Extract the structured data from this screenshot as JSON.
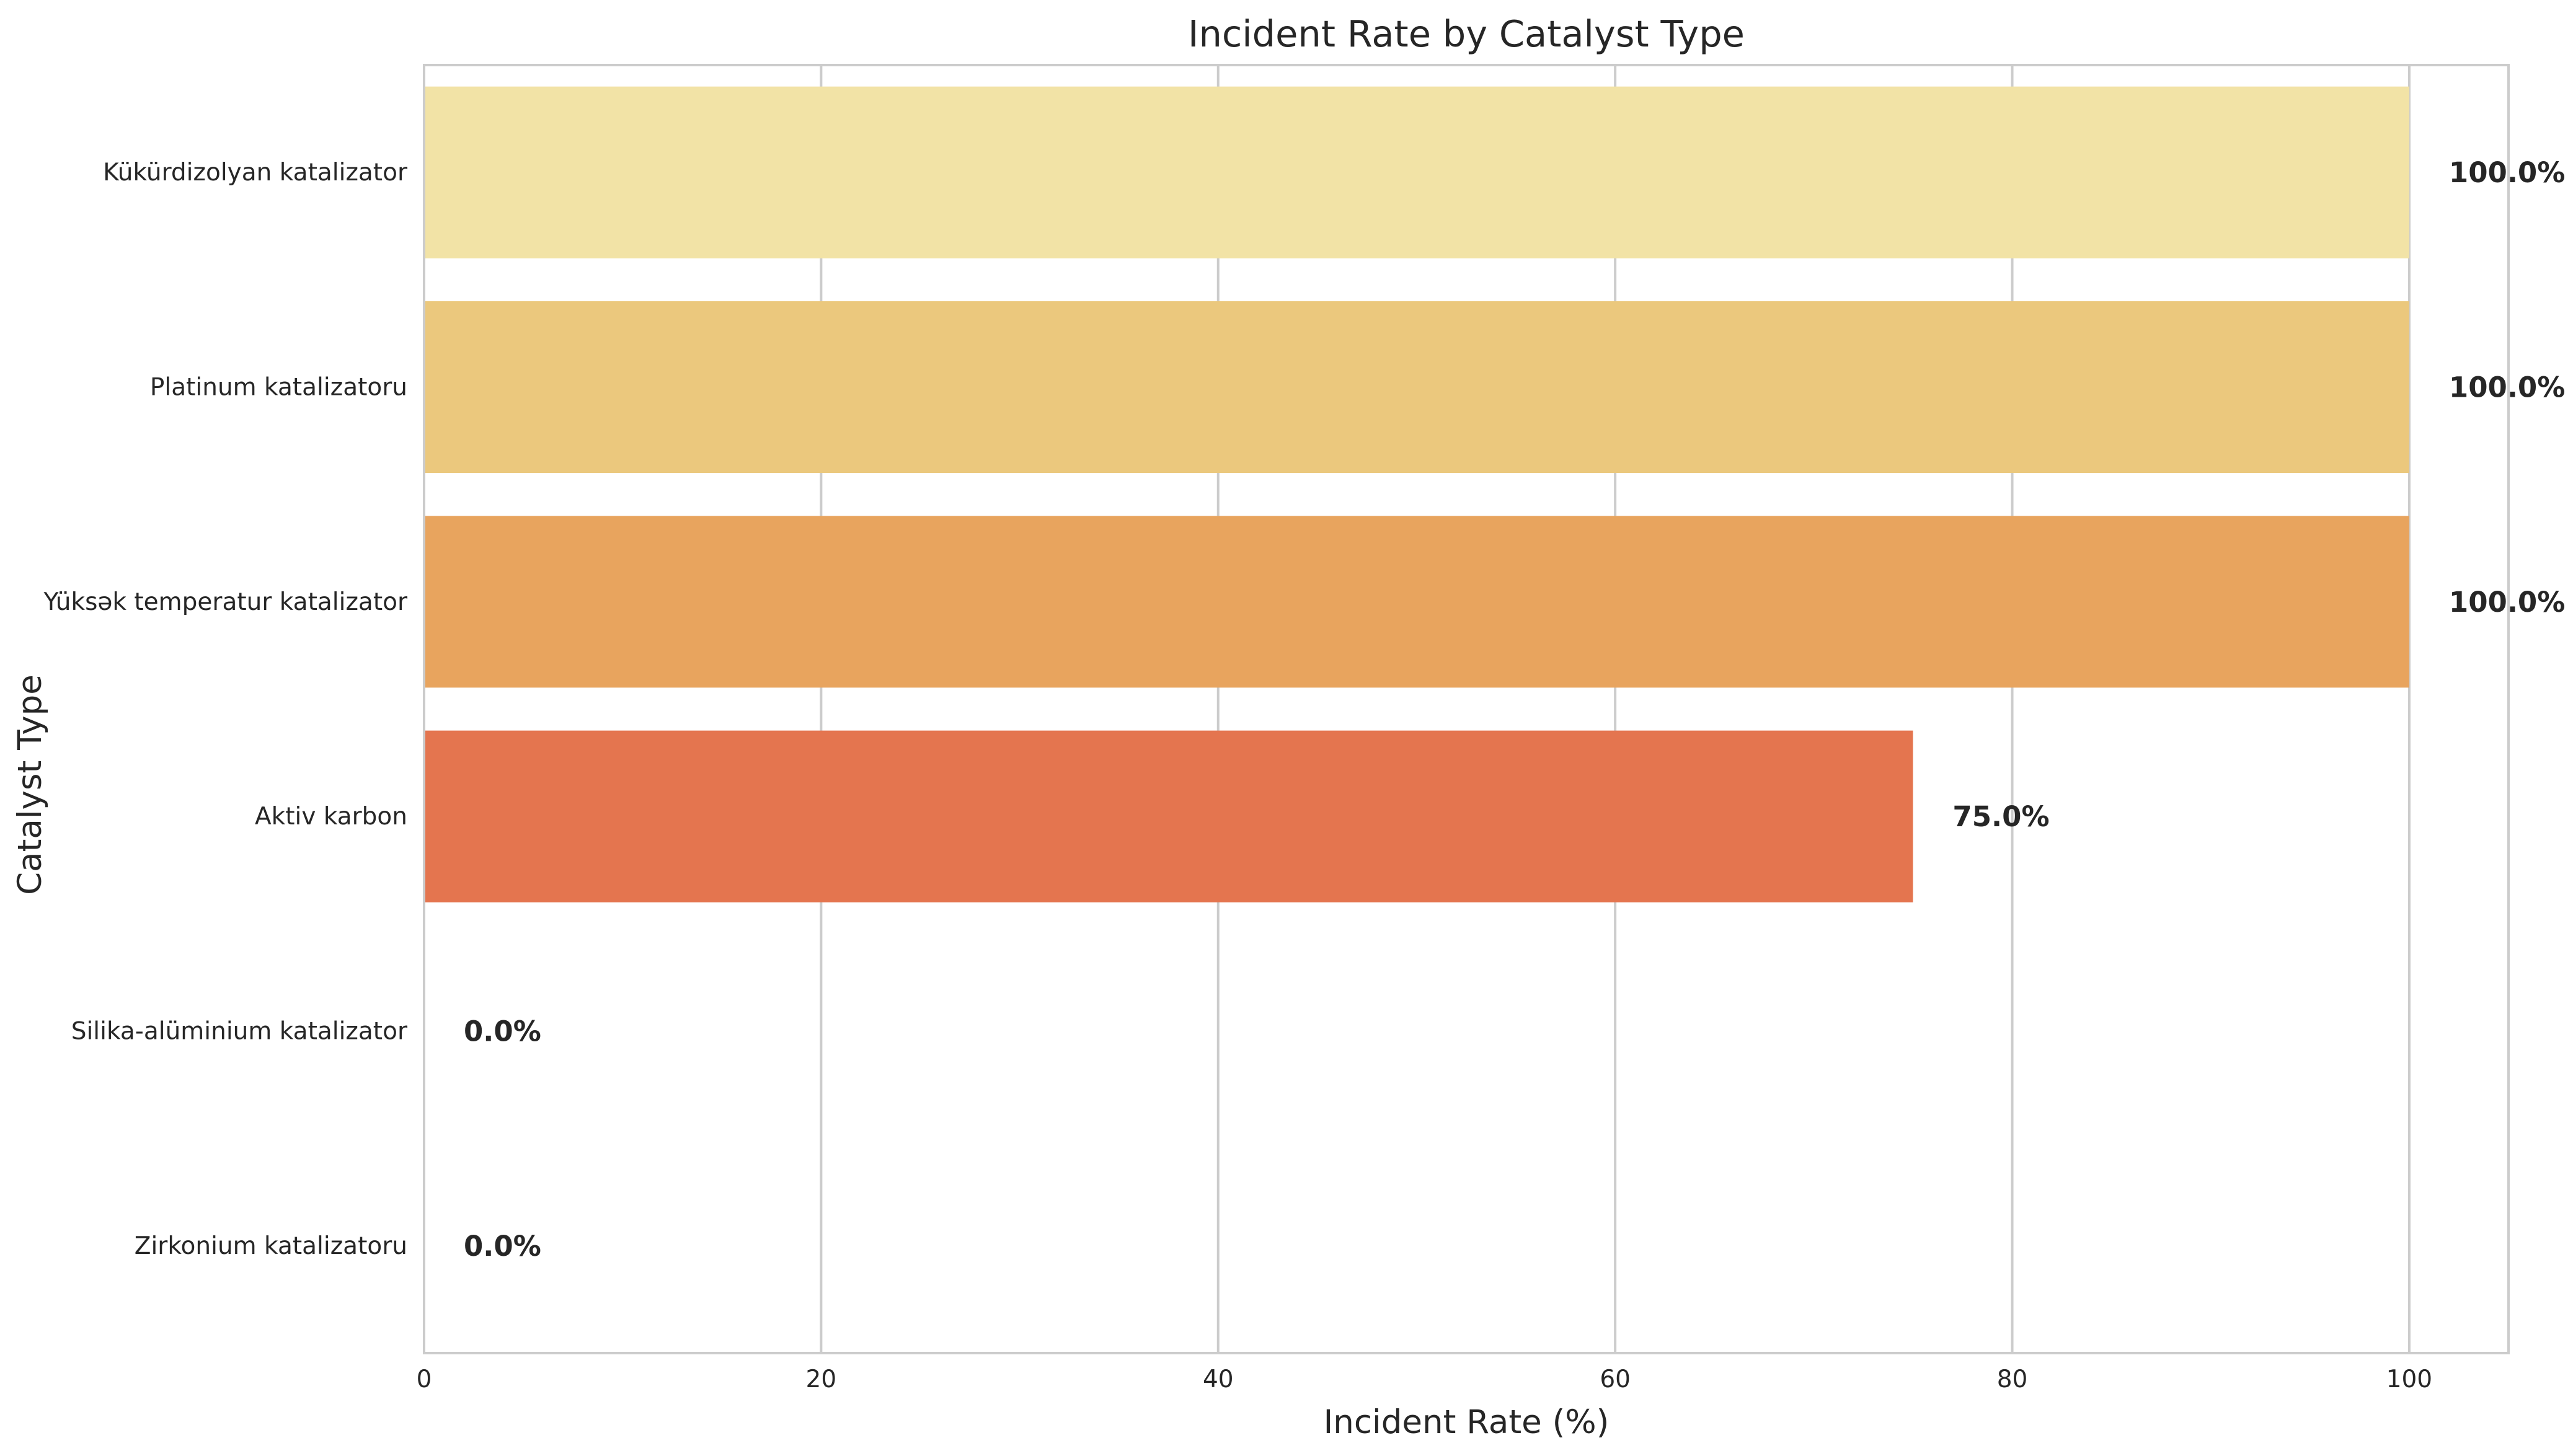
{
  "chart_data": {
    "type": "bar",
    "orientation": "horizontal",
    "title": "Incident Rate by Catalyst Type",
    "xlabel": "Incident Rate (%)",
    "ylabel": "Catalyst Type",
    "xlim": [
      0,
      105
    ],
    "xticks": [
      0,
      20,
      40,
      60,
      80,
      100
    ],
    "grid": "vertical",
    "categories": [
      "Kükürdizolyan katalizator",
      "Platinum katalizatoru",
      "Yüksək temperatur katalizator",
      "Aktiv karbon",
      "Silika-alüminium katalizator",
      "Zirkonium katalizatoru"
    ],
    "values": [
      100.0,
      100.0,
      100.0,
      75.0,
      0.0,
      0.0
    ],
    "data_labels": [
      "100.0%",
      "100.0%",
      "100.0%",
      "75.0%",
      "0.0%",
      "0.0%"
    ],
    "colors": [
      "#f2e3a6",
      "#ebc87d",
      "#e8a45e",
      "#e4754f",
      "#d8473e",
      "#c0282c"
    ]
  }
}
